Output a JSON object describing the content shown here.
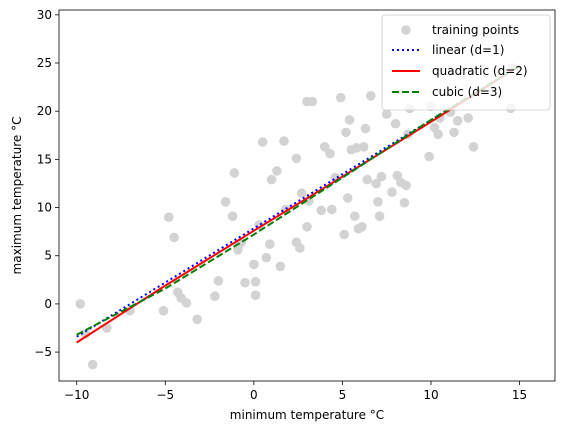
{
  "chart_data": {
    "type": "scatter",
    "title": "",
    "xlabel": "minimum temperature °C",
    "ylabel": "maximum temperature °C",
    "xlim": [
      -11,
      17
    ],
    "ylim": [
      -8,
      30.5
    ],
    "xticks": [
      -10,
      -5,
      0,
      5,
      10,
      15
    ],
    "yticks": [
      -5,
      0,
      5,
      10,
      15,
      20,
      25,
      30
    ],
    "grid": false,
    "legend_position": "top-right",
    "points": {
      "name": "training points",
      "color": "#d3d3d3",
      "x": [
        -9.8,
        -9.5,
        -9.1,
        -8.3,
        -7.0,
        -5.1,
        -4.8,
        -4.5,
        -4.3,
        -4.1,
        -3.8,
        -3.2,
        -2.2,
        -2.0,
        -1.6,
        -1.2,
        -1.1,
        -0.9,
        -0.9,
        -0.7,
        -0.5,
        0.0,
        0.1,
        0.1,
        0.3,
        0.5,
        0.7,
        0.9,
        1.0,
        1.3,
        1.5,
        1.7,
        1.8,
        2.4,
        2.4,
        2.6,
        2.7,
        3.0,
        3.0,
        3.1,
        3.3,
        3.8,
        4.0,
        4.3,
        4.4,
        4.6,
        4.9,
        5.1,
        5.2,
        5.3,
        5.4,
        5.5,
        5.7,
        5.8,
        5.9,
        6.1,
        6.2,
        6.3,
        6.4,
        6.6,
        6.9,
        7.0,
        7.1,
        7.2,
        7.5,
        7.8,
        8.0,
        8.1,
        8.3,
        8.5,
        8.6,
        8.7,
        8.8,
        9.9,
        10.0,
        10.2,
        10.4,
        10.5,
        11.1,
        11.3,
        11.5,
        12.1,
        12.4,
        14.5,
        14.6
      ],
      "y": [
        0.0,
        -3.1,
        -6.3,
        -2.5,
        -0.7,
        -0.7,
        9.0,
        6.9,
        1.2,
        0.6,
        0.1,
        -1.6,
        0.8,
        2.4,
        10.6,
        9.1,
        13.6,
        5.6,
        6.0,
        6.4,
        2.2,
        4.1,
        2.3,
        0.9,
        8.2,
        16.8,
        4.8,
        6.2,
        12.9,
        13.8,
        3.9,
        16.9,
        9.8,
        6.4,
        15.1,
        5.8,
        11.5,
        8.0,
        21.0,
        10.7,
        21.0,
        9.7,
        16.3,
        15.6,
        9.8,
        13.1,
        21.4,
        7.2,
        17.8,
        11.0,
        19.1,
        16.0,
        9.1,
        16.2,
        7.8,
        8.0,
        16.3,
        18.2,
        12.9,
        21.6,
        12.5,
        10.6,
        9.1,
        13.2,
        19.7,
        11.6,
        18.7,
        13.3,
        12.6,
        10.5,
        12.3,
        17.6,
        20.3,
        15.3,
        20.5,
        18.3,
        17.6,
        19.3,
        19.9,
        17.8,
        19.0,
        19.3,
        16.3,
        20.3,
        24.5
      ]
    },
    "series": [
      {
        "name": "linear (d=1)",
        "color": "#0000ff",
        "style": "dotted",
        "x": [
          -10,
          15
        ],
        "y": [
          -3.4,
          24.7
        ]
      },
      {
        "name": "quadratic (d=2)",
        "color": "#ff0000",
        "style": "solid",
        "x": [
          -10,
          -5,
          0,
          5,
          10,
          15
        ],
        "y": [
          -4.0,
          1.9,
          7.6,
          13.2,
          18.9,
          24.7
        ]
      },
      {
        "name": "cubic (d=3)",
        "color": "#008000",
        "style": "dashed",
        "x": [
          -10,
          -5,
          0,
          5,
          10,
          15
        ],
        "y": [
          -3.2,
          1.6,
          7.2,
          13.1,
          19.1,
          24.7
        ]
      }
    ]
  }
}
